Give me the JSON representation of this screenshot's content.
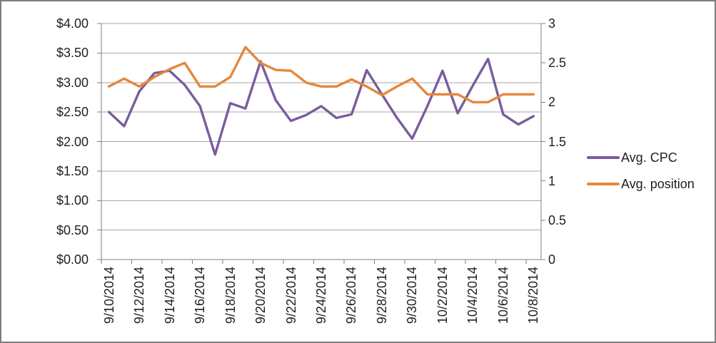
{
  "chart_data": {
    "type": "line",
    "title": "",
    "categories": [
      "9/10/2014",
      "9/11/2014",
      "9/12/2014",
      "9/13/2014",
      "9/14/2014",
      "9/15/2014",
      "9/16/2014",
      "9/17/2014",
      "9/18/2014",
      "9/19/2014",
      "9/20/2014",
      "9/21/2014",
      "9/22/2014",
      "9/23/2014",
      "9/24/2014",
      "9/25/2014",
      "9/26/2014",
      "9/27/2014",
      "9/28/2014",
      "9/29/2014",
      "9/30/2014",
      "10/1/2014",
      "10/2/2014",
      "10/3/2014",
      "10/4/2014",
      "10/5/2014",
      "10/6/2014",
      "10/7/2014",
      "10/8/2014"
    ],
    "x_axis": {
      "label_interval": 2,
      "labels_shown": [
        "9/10/2014",
        "9/12/2014",
        "9/14/2014",
        "9/16/2014",
        "9/18/2014",
        "9/20/2014",
        "9/22/2014",
        "9/24/2014",
        "9/26/2014",
        "9/28/2014",
        "9/30/2014",
        "10/2/2014",
        "10/4/2014",
        "10/6/2014",
        "10/8/2014"
      ]
    },
    "series": [
      {
        "name": "Avg. CPC",
        "axis": "left",
        "color": "#7a5c9e",
        "values": [
          2.5,
          2.26,
          2.85,
          3.16,
          3.2,
          2.96,
          2.6,
          1.78,
          2.65,
          2.56,
          3.36,
          2.7,
          2.35,
          2.45,
          2.6,
          2.4,
          2.46,
          3.21,
          2.8,
          2.4,
          2.05,
          2.6,
          3.2,
          2.48,
          2.95,
          3.4,
          2.46,
          2.29,
          2.43
        ]
      },
      {
        "name": "Avg. position",
        "axis": "right",
        "color": "#e6873a",
        "values": [
          2.2,
          2.3,
          2.2,
          2.32,
          2.42,
          2.5,
          2.2,
          2.2,
          2.32,
          2.7,
          2.5,
          2.41,
          2.4,
          2.25,
          2.2,
          2.2,
          2.29,
          2.2,
          2.09,
          2.2,
          2.3,
          2.1,
          2.1,
          2.1,
          2.0,
          2.0,
          2.1,
          2.1,
          2.1
        ]
      }
    ],
    "left_axis": {
      "min": 0,
      "max": 4,
      "step": 0.5,
      "format": "currency",
      "ticks": [
        "$4.00",
        "$3.50",
        "$3.00",
        "$2.50",
        "$2.00",
        "$1.50",
        "$1.00",
        "$0.50",
        "$0.00"
      ]
    },
    "right_axis": {
      "min": 0,
      "max": 3,
      "step": 0.5,
      "ticks": [
        "3",
        "2.5",
        "2",
        "1.5",
        "1",
        "0.5",
        "0"
      ]
    },
    "grid": "horizontal",
    "legend_position": "right"
  }
}
